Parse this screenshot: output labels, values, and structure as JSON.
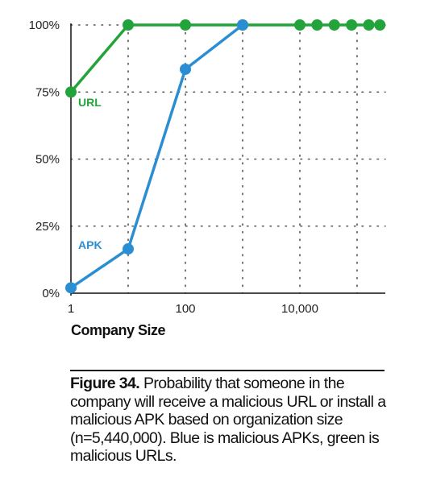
{
  "chart_data": {
    "type": "line",
    "x_scale": "log",
    "xlim": [
      1,
      250000
    ],
    "ylim": [
      0,
      100
    ],
    "xlabel": "Company Size",
    "ylabel": "",
    "x_ticks": [
      {
        "value": 1,
        "label": "1"
      },
      {
        "value": 100,
        "label": "100"
      },
      {
        "value": 10000,
        "label": "10,000"
      }
    ],
    "y_ticks": [
      {
        "value": 0,
        "label": "0%"
      },
      {
        "value": 25,
        "label": "25%"
      },
      {
        "value": 50,
        "label": "50%"
      },
      {
        "value": 75,
        "label": "75%"
      },
      {
        "value": 100,
        "label": "100%"
      }
    ],
    "grid": "dotted",
    "series": [
      {
        "name": "URL",
        "color": "#22a43a",
        "x": [
          1,
          10,
          100,
          1000,
          10000,
          20000,
          40000,
          80000,
          160000,
          250000
        ],
        "y": [
          75,
          100,
          100,
          100,
          100,
          100,
          100,
          100,
          100,
          100
        ]
      },
      {
        "name": "APK",
        "color": "#2b8ed2",
        "x": [
          1,
          10,
          100,
          1000
        ],
        "y": [
          2,
          16.5,
          83.5,
          100
        ]
      }
    ]
  },
  "caption": {
    "label": "Figure 34.",
    "text": " Probability that someone in the company will receive a malicious URL or install a malicious APK based on organization size (n=5,440,000). Blue is malicious APKs, green is malicious URLs."
  }
}
